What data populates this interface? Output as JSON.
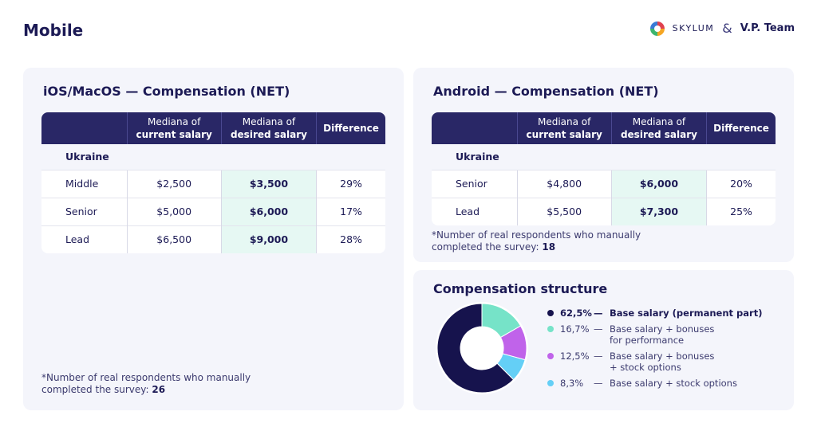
{
  "page": {
    "title": "Mobile"
  },
  "branding": {
    "skylum": "SKYLUM",
    "ampersand": "&",
    "partner": "V.P. Team"
  },
  "ios": {
    "title": "iOS/MacOS — Compensation (NET)",
    "headers": {
      "h1_line1": "Mediana of",
      "h1_line2": "current salary",
      "h2_line1": "Mediana of",
      "h2_line2": "desired salary",
      "h3": "Difference"
    },
    "region": "Ukraine",
    "rows": [
      {
        "level": "Middle",
        "current": "$2,500",
        "desired": "$3,500",
        "diff": "29%"
      },
      {
        "level": "Senior",
        "current": "$5,000",
        "desired": "$6,000",
        "diff": "17%"
      },
      {
        "level": "Lead",
        "current": "$6,500",
        "desired": "$9,000",
        "diff": "28%"
      }
    ],
    "footnote": {
      "text_line1": "*Number of real respondents who manually",
      "text_line2": "completed the survey: ",
      "count": "26"
    }
  },
  "android": {
    "title": "Android — Compensation (NET)",
    "headers": {
      "h1_line1": "Mediana of",
      "h1_line2": "current salary",
      "h2_line1": "Mediana of",
      "h2_line2": "desired salary",
      "h3": "Difference"
    },
    "region": "Ukraine",
    "rows": [
      {
        "level": "Senior",
        "current": "$4,800",
        "desired": "$6,000",
        "diff": "20%"
      },
      {
        "level": "Lead",
        "current": "$5,500",
        "desired": "$7,300",
        "diff": "25%"
      }
    ],
    "footnote": {
      "text_line1": "*Number of real respondents who manually",
      "text_line2": "completed the survey: ",
      "count": "18"
    }
  },
  "compensation": {
    "title": "Compensation structure",
    "items": [
      {
        "pct": "62,5%",
        "dash": "—",
        "line1": "Base salary (permanent part)",
        "line2": "",
        "color": "#16134d"
      },
      {
        "pct": "16,7%",
        "dash": "—",
        "line1": "Base salary + bonuses",
        "line2": "for performance",
        "color": "#76e3c8"
      },
      {
        "pct": "12,5%",
        "dash": "—",
        "line1": "Base salary + bonuses",
        "line2": "+ stock options",
        "color": "#c063ea"
      },
      {
        "pct": "8,3%",
        "dash": "—",
        "line1": "Base salary + stock options",
        "line2": "",
        "color": "#64cff6"
      }
    ]
  },
  "chart_data": {
    "type": "pie",
    "title": "Compensation structure",
    "categories": [
      "Base salary (permanent part)",
      "Base salary + bonuses for performance",
      "Base salary + bonuses + stock options",
      "Base salary + stock options"
    ],
    "values": [
      62.5,
      16.7,
      12.5,
      8.3
    ],
    "colors": [
      "#16134d",
      "#76e3c8",
      "#c063ea",
      "#64cff6"
    ],
    "donut": true,
    "legend": "right"
  }
}
